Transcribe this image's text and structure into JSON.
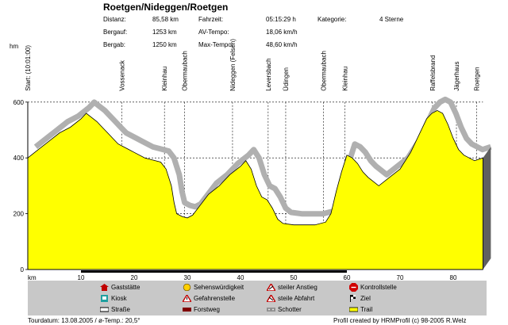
{
  "header": {
    "title": "Roetgen/Nideggen/Roetgen",
    "stats": [
      {
        "label": "Distanz:",
        "value": "85,58 km"
      },
      {
        "label": "Bergauf:",
        "value": "1253 km"
      },
      {
        "label": "Bergab:",
        "value": "1250 km"
      },
      {
        "label": "Fahrzeit:",
        "value": "05:15:29 h"
      },
      {
        "label": "AV-Tempo:",
        "value": "18,06 km/h"
      },
      {
        "label": "Max-Tempo:",
        "value": "48,60 km/h"
      },
      {
        "label": "Kategorie:",
        "value": "4 Sterne"
      }
    ]
  },
  "legend": {
    "items": [
      {
        "label": "Gaststätte",
        "icon": "house-icon"
      },
      {
        "label": "Kiosk",
        "icon": "kiosk-icon"
      },
      {
        "label": "Straße",
        "icon": "road-icon"
      },
      {
        "label": "Sehenswürdigkeit",
        "icon": "sight-icon"
      },
      {
        "label": "Gefahrenstelle",
        "icon": "danger-icon"
      },
      {
        "label": "Forstweg",
        "icon": "forest-road-icon"
      },
      {
        "label": "steiler Anstieg",
        "icon": "steep-climb-icon"
      },
      {
        "label": "steile Abfahrt",
        "icon": "steep-descent-icon"
      },
      {
        "label": "Schotter",
        "icon": "gravel-icon"
      },
      {
        "label": "Kontrollstelle",
        "icon": "stop-icon"
      },
      {
        "label": "Ziel",
        "icon": "finish-flag-icon"
      },
      {
        "label": "Trail",
        "icon": "trail-icon"
      }
    ]
  },
  "footer": {
    "left": "Tourdatum: 13.08.2005  /  ø-Temp.: 20,5°",
    "right": "Profil created by HRMProfil (c) 98-2005 R.Welz"
  },
  "colors": {
    "profile": "#ffff00",
    "side": "#606060",
    "trail_band": "#b0b0b0",
    "legend_bg": "#c8c8c8"
  },
  "chart_data": {
    "type": "area",
    "ylabel": "hm",
    "xlabel": "km",
    "ylim": [
      0,
      600
    ],
    "xlim": [
      0,
      85.58
    ],
    "yticks": [
      0,
      200,
      400,
      600
    ],
    "xticks": [
      10,
      20,
      30,
      40,
      50,
      60,
      70,
      80
    ],
    "grid": true,
    "x": [
      0,
      2,
      4,
      6,
      8,
      10,
      11,
      12,
      13,
      14,
      15,
      16,
      17,
      18,
      19,
      20,
      22,
      24,
      25,
      26,
      27,
      27.5,
      28,
      29,
      30,
      31,
      32,
      34,
      36,
      38,
      40,
      41,
      42,
      43,
      44,
      45,
      46,
      47,
      48,
      50,
      52,
      54,
      56,
      57,
      58,
      59,
      60,
      61,
      62,
      63,
      64,
      66,
      68,
      70,
      72,
      74,
      75,
      76,
      77,
      78,
      79,
      80,
      81,
      82,
      83,
      84,
      85.58
    ],
    "y": [
      400,
      430,
      460,
      490,
      510,
      540,
      560,
      545,
      530,
      510,
      490,
      470,
      450,
      440,
      430,
      420,
      400,
      390,
      385,
      360,
      300,
      240,
      200,
      190,
      185,
      195,
      220,
      270,
      300,
      340,
      370,
      390,
      360,
      300,
      260,
      250,
      220,
      180,
      165,
      160,
      160,
      160,
      170,
      200,
      280,
      350,
      410,
      400,
      380,
      350,
      330,
      300,
      330,
      360,
      420,
      500,
      540,
      560,
      570,
      560,
      520,
      470,
      430,
      410,
      400,
      390,
      400
    ],
    "waypoints": [
      {
        "label": "Start: (10:01:00)",
        "km": 0
      },
      {
        "label": "Vossenack",
        "km": 17.7
      },
      {
        "label": "Kleinhau",
        "km": 25.7
      },
      {
        "label": "Obermaubach",
        "km": 29.5
      },
      {
        "label": "Nideggen (Felsen)",
        "km": 38.5
      },
      {
        "label": "Leversbach",
        "km": 45.2
      },
      {
        "label": "Üdingen",
        "km": 48.5
      },
      {
        "label": "Obermaubach",
        "km": 55.6
      },
      {
        "label": "Kleinhau",
        "km": 59.6
      },
      {
        "label": "Raffelsbrand",
        "km": 76.1
      },
      {
        "label": "Jägerhaus",
        "km": 80.6
      },
      {
        "label": "Roetgen",
        "km": 84.4
      }
    ]
  }
}
